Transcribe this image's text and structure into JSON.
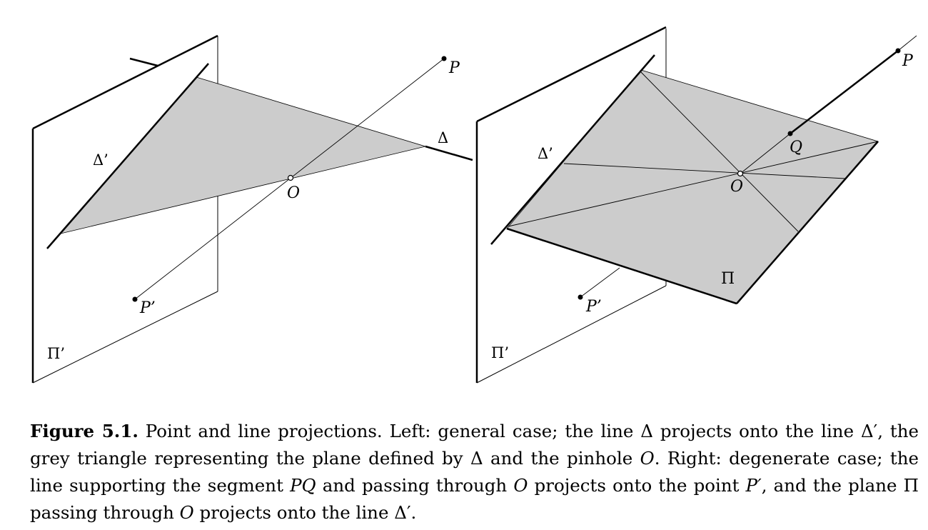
{
  "figure": {
    "left": {
      "labels": {
        "p": "P",
        "p_prime": "P’",
        "o": "O",
        "delta": "Δ",
        "delta_prime": "Δ’",
        "pi_prime": "Π’"
      }
    },
    "right": {
      "labels": {
        "p": "P",
        "q": "Q",
        "p_prime": "P’",
        "o": "O",
        "pi": "Π",
        "delta_prime": "Δ’",
        "pi_prime": "Π’"
      }
    },
    "colors": {
      "plane_fill": "#cccccc",
      "stroke": "#000000",
      "background": "#ffffff"
    }
  },
  "caption": {
    "label": "Figure 5.1.",
    "parts": {
      "t1": " Point and line projections. Left: general case; the line Δ projects onto the line Δ′, the grey triangle representing the plane defined by Δ and the pinhole ",
      "o1": "O",
      "t2": ". Right: degenerate case; the line supporting the segment ",
      "pq": "PQ",
      "t3": " and passing through ",
      "o2": "O",
      "t4": " projects onto the point ",
      "pprime": "P′",
      "t5": ", and the plane Π passing through ",
      "o3": "O",
      "t6": " projects onto the line Δ′."
    }
  }
}
